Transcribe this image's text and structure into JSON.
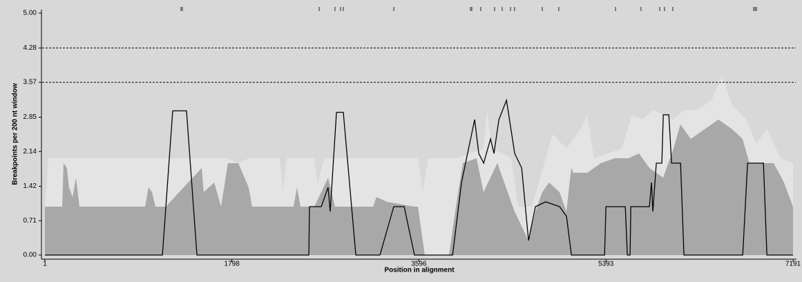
{
  "chart_data": {
    "type": "area",
    "x_label": "Position in alignment",
    "y_label": "Breakpoints per 200 nt window",
    "xlim": [
      1,
      7191
    ],
    "ylim": [
      0,
      5
    ],
    "xticks": [
      1,
      1798,
      3596,
      5393,
      7191
    ],
    "yticks": [
      {
        "value": 0,
        "label": "0.00"
      },
      0.71,
      1.42,
      2.14,
      2.85,
      3.57,
      4.28,
      {
        "value": 5,
        "label": "5.00"
      }
    ],
    "thresholds": [
      4.28,
      3.57
    ],
    "breakpoints": [
      1309,
      1322,
      2637,
      2789,
      2842,
      2869,
      3354,
      4091,
      4104,
      4190,
      4323,
      4396,
      4476,
      4515,
      4781,
      4940,
      5485,
      5730,
      5910,
      5956,
      6036,
      6813,
      6826,
      6840
    ],
    "series": [
      {
        "style": "area",
        "color": "#e4e4e4",
        "x": [
          1,
          34,
          1163,
          1760,
          1860,
          1959,
          2258,
          2291,
          2325,
          2590,
          2623,
          2690,
          3586,
          3632,
          3685,
          3951,
          4217,
          4250,
          4296,
          4482,
          4549,
          4681,
          4814,
          4880,
          5013,
          5146,
          5212,
          5279,
          5544,
          5644,
          5744,
          5843,
          6042,
          6142,
          6275,
          6408,
          6507,
          6607,
          6740,
          6840,
          6939,
          7072,
          7191
        ],
        "values": [
          1.0,
          2.0,
          2.0,
          2.0,
          1.9,
          2.0,
          2.0,
          1.3,
          2.0,
          2.0,
          1.5,
          2.0,
          2.0,
          1.3,
          2.0,
          2.0,
          2.2,
          3.0,
          2.2,
          2.0,
          1.0,
          1.0,
          2.0,
          2.5,
          2.2,
          2.6,
          2.9,
          2.0,
          2.2,
          2.9,
          2.8,
          3.0,
          2.8,
          3.0,
          3.0,
          3.2,
          3.7,
          3.1,
          2.8,
          2.3,
          2.6,
          2.0,
          1.9
        ]
      },
      {
        "style": "area",
        "color": "#a8a8a8",
        "x": [
          1,
          167,
          180,
          213,
          233,
          267,
          300,
          333,
          964,
          997,
          1030,
          1063,
          1163,
          1508,
          1528,
          1628,
          1694,
          1760,
          1860,
          1959,
          1993,
          2391,
          2424,
          2457,
          2590,
          2657,
          2723,
          2789,
          2889,
          3155,
          3188,
          3288,
          3553,
          3586,
          3652,
          3885,
          3951,
          4018,
          4150,
          4217,
          4283,
          4349,
          4416,
          4515,
          4582,
          4648,
          4715,
          4781,
          4847,
          4947,
          5013,
          5060,
          5080,
          5213,
          5345,
          5478,
          5611,
          5711,
          5810,
          5943,
          6042,
          6109,
          6208,
          6341,
          6474,
          6607,
          6706,
          6772,
          6938,
          7005,
          7104,
          7191
        ],
        "values": [
          1.0,
          1.0,
          1.9,
          1.8,
          1.4,
          1.2,
          1.6,
          1.0,
          1.0,
          1.4,
          1.3,
          1.0,
          1.0,
          1.8,
          1.3,
          1.5,
          1.0,
          1.9,
          1.9,
          1.4,
          1.0,
          1.0,
          1.4,
          1.0,
          1.0,
          1.3,
          1.6,
          1.0,
          1.0,
          1.0,
          1.2,
          1.1,
          1.0,
          1.0,
          0,
          0,
          1.0,
          1.9,
          2.0,
          1.3,
          1.6,
          1.9,
          1.5,
          0.9,
          0.6,
          0.3,
          0.9,
          1.3,
          1.5,
          1.3,
          0.9,
          1.8,
          1.7,
          1.7,
          1.9,
          2.0,
          2.0,
          2.1,
          1.8,
          1.6,
          2.2,
          2.7,
          2.4,
          2.6,
          2.8,
          2.6,
          2.4,
          1.9,
          1.9,
          1.9,
          1.5,
          1.0
        ]
      },
      {
        "style": "line",
        "color": "#000000",
        "x": [
          1,
          1130,
          1229,
          1362,
          1462,
          2538,
          2544,
          2657,
          2723,
          2743,
          2803,
          2869,
          2989,
          3221,
          3354,
          3454,
          3553,
          3919,
          4005,
          4131,
          4171,
          4218,
          4284,
          4317,
          4364,
          4437,
          4516,
          4583,
          4649,
          4715,
          4815,
          4948,
          5014,
          5061,
          5380,
          5393,
          5579,
          5599,
          5625,
          5632,
          5811,
          5831,
          5844,
          5877,
          5930,
          5944,
          5997,
          6024,
          6110,
          6143,
          6708,
          6754,
          6907,
          6940,
          7191
        ],
        "values": [
          0,
          0,
          2.98,
          2.98,
          0,
          0,
          1.0,
          1.0,
          1.4,
          0.9,
          2.95,
          2.95,
          0,
          0,
          1.0,
          1.0,
          0,
          0,
          1.5,
          2.8,
          2.1,
          1.9,
          2.4,
          2.1,
          2.8,
          3.2,
          2.1,
          1.8,
          0.3,
          1.0,
          1.1,
          1.0,
          0.8,
          0,
          0,
          1.0,
          1.0,
          0,
          0,
          1.0,
          1.0,
          1.5,
          0.9,
          1.9,
          1.9,
          2.9,
          2.9,
          1.9,
          1.9,
          0,
          0,
          1.9,
          1.9,
          0,
          0
        ]
      }
    ]
  }
}
